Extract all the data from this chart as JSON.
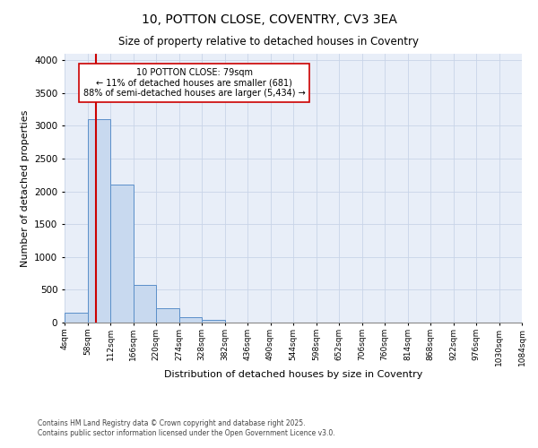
{
  "title1": "10, POTTON CLOSE, COVENTRY, CV3 3EA",
  "title2": "Size of property relative to detached houses in Coventry",
  "xlabel": "Distribution of detached houses by size in Coventry",
  "ylabel": "Number of detached properties",
  "footnote1": "Contains HM Land Registry data © Crown copyright and database right 2025.",
  "footnote2": "Contains public sector information licensed under the Open Government Licence v3.0.",
  "bin_edges": [
    4,
    58,
    112,
    166,
    220,
    274,
    328,
    382,
    436,
    490,
    544,
    598,
    652,
    706,
    760,
    814,
    868,
    922,
    976,
    1030,
    1084
  ],
  "bin_labels": [
    "4sqm",
    "58sqm",
    "112sqm",
    "166sqm",
    "220sqm",
    "274sqm",
    "328sqm",
    "382sqm",
    "436sqm",
    "490sqm",
    "544sqm",
    "598sqm",
    "652sqm",
    "706sqm",
    "760sqm",
    "814sqm",
    "868sqm",
    "922sqm",
    "976sqm",
    "1030sqm",
    "1084sqm"
  ],
  "bar_values": [
    150,
    3100,
    2100,
    575,
    215,
    80,
    45,
    0,
    0,
    0,
    0,
    0,
    0,
    0,
    0,
    0,
    0,
    0,
    0,
    0
  ],
  "bar_color": "#c8d9ef",
  "bar_edge_color": "#5b8fc9",
  "property_size": 79,
  "red_line_color": "#cc0000",
  "annotation_text": "10 POTTON CLOSE: 79sqm\n← 11% of detached houses are smaller (681)\n88% of semi-detached houses are larger (5,434) →",
  "annotation_box_color": "#ffffff",
  "annotation_box_edge": "#cc0000",
  "ylim": [
    0,
    4100
  ],
  "yticks": [
    0,
    500,
    1000,
    1500,
    2000,
    2500,
    3000,
    3500,
    4000
  ],
  "grid_color": "#c8d4e8",
  "background_color": "#e8eef8"
}
